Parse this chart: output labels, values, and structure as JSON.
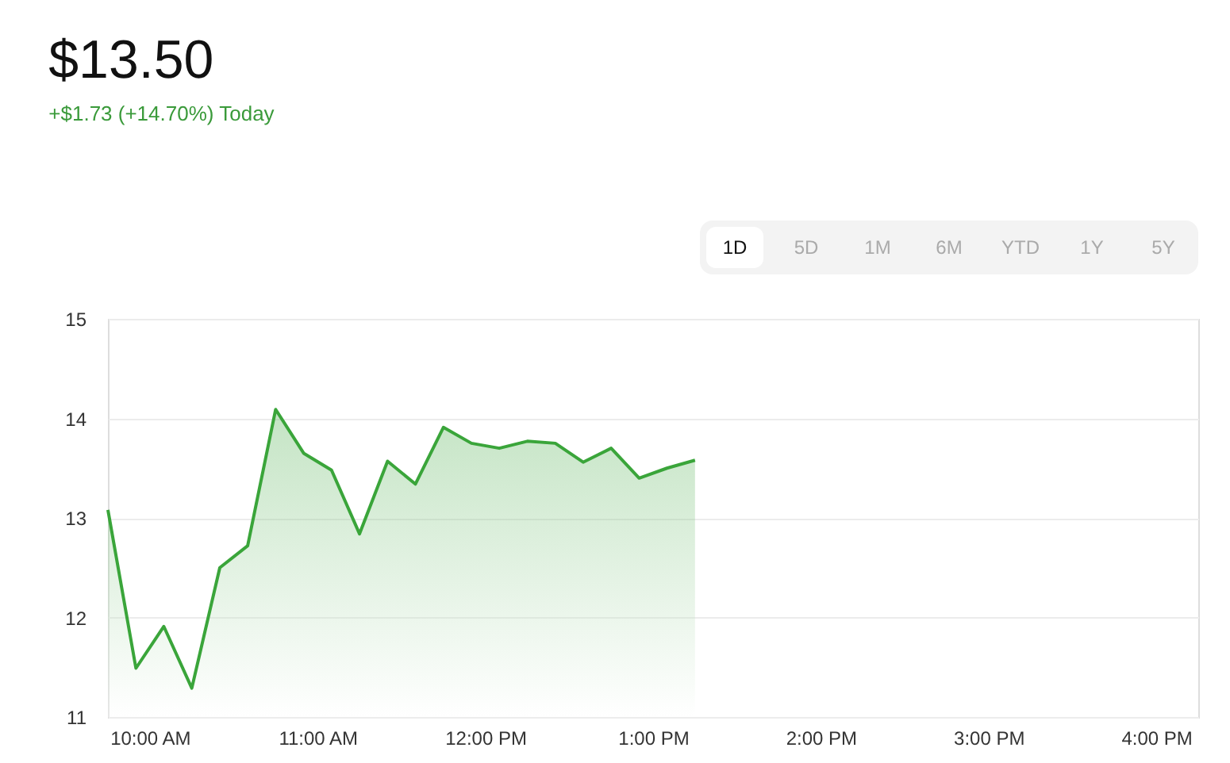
{
  "chart_data": {
    "type": "area",
    "title": "$13.50",
    "subtitle": "+$1.73 (+14.70%) Today",
    "annotations": [
      "1D",
      "5D",
      "1M",
      "6M",
      "YTD",
      "1Y",
      "5Y"
    ],
    "x": [
      9.75,
      9.917,
      10.083,
      10.25,
      10.417,
      10.583,
      10.75,
      10.917,
      11.083,
      11.25,
      11.417,
      11.583,
      11.75,
      11.917,
      12.083,
      12.25,
      12.417,
      12.583,
      12.75,
      12.917,
      13.083,
      13.25
    ],
    "series": [
      {
        "color": "#3aa53a",
        "values": [
          13.08,
          11.49,
          11.91,
          11.29,
          12.5,
          12.72,
          14.09,
          13.65,
          13.48,
          12.84,
          13.57,
          13.34,
          13.91,
          13.75,
          13.7,
          13.77,
          13.75,
          13.56,
          13.7,
          13.4,
          13.5,
          13.58
        ]
      }
    ],
    "xlim": [
      9.75,
      16.25
    ],
    "xticks": [
      {
        "value": 10,
        "label": "10:00 AM"
      },
      {
        "value": 11,
        "label": "11:00 AM"
      },
      {
        "value": 12,
        "label": "12:00 PM"
      },
      {
        "value": 13,
        "label": "1:00 PM"
      },
      {
        "value": 14,
        "label": "2:00 PM"
      },
      {
        "value": 15,
        "label": "3:00 PM"
      },
      {
        "value": 16,
        "label": "4:00 PM"
      }
    ],
    "ylim": [
      11,
      15
    ],
    "yticks": [
      11,
      12,
      13,
      14,
      15
    ],
    "grid": "y"
  }
}
